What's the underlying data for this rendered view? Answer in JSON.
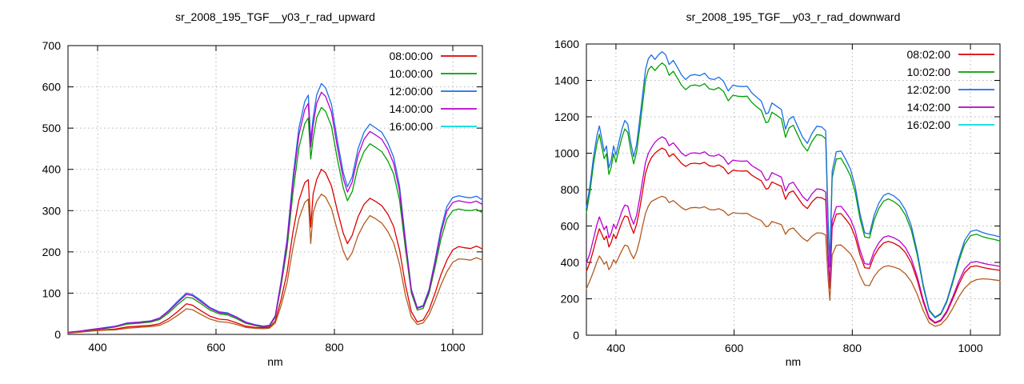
{
  "page": {
    "background": "#ffffff",
    "grid_color": "#b4b4b4",
    "axis_color": "#000000",
    "text_color": "#000000"
  },
  "charts": [
    {
      "title": "sr_2008_195_TGF__y03_r_rad_upward",
      "xlabel": "nm",
      "type": "line",
      "grid": true,
      "legend_position": "top-right",
      "xlim": [
        350,
        1050
      ],
      "ylim": [
        0,
        700
      ],
      "x_ticks": [
        400,
        600,
        800,
        1000
      ],
      "y_ticks": [
        0,
        100,
        200,
        300,
        400,
        500,
        600,
        700
      ],
      "x": [
        350,
        370,
        390,
        410,
        430,
        450,
        470,
        490,
        505,
        520,
        535,
        550,
        560,
        575,
        590,
        605,
        620,
        635,
        650,
        665,
        680,
        690,
        700,
        710,
        720,
        730,
        740,
        750,
        756,
        760,
        764,
        770,
        778,
        785,
        795,
        805,
        815,
        822,
        830,
        840,
        850,
        860,
        870,
        880,
        890,
        900,
        910,
        920,
        930,
        940,
        950,
        960,
        970,
        980,
        990,
        1000,
        1010,
        1020,
        1030,
        1040,
        1050
      ],
      "series": [
        {
          "name": "08:00:00",
          "legend_color": "#dc0000",
          "line_color": "#dc0000",
          "values": [
            4,
            6,
            9,
            11,
            13,
            18,
            20,
            22,
            26,
            38,
            55,
            74,
            71,
            57,
            44,
            37,
            35,
            28,
            20,
            17,
            16,
            17,
            32,
            85,
            150,
            248,
            325,
            368,
            375,
            260,
            340,
            375,
            400,
            392,
            360,
            300,
            245,
            220,
            240,
            285,
            315,
            330,
            322,
            312,
            292,
            262,
            205,
            120,
            55,
            30,
            35,
            60,
            100,
            145,
            180,
            205,
            213,
            210,
            208,
            214,
            207
          ]
        },
        {
          "name": "10:00:00",
          "legend_color": "#00a000",
          "line_color": "#00a000",
          "values": [
            5,
            7,
            11,
            14,
            18,
            25,
            27,
            30,
            36,
            52,
            72,
            90,
            88,
            74,
            59,
            50,
            47,
            38,
            27,
            22,
            18,
            20,
            41,
            118,
            208,
            344,
            452,
            511,
            525,
            425,
            475,
            525,
            550,
            541,
            505,
            425,
            355,
            324,
            346,
            407,
            443,
            462,
            453,
            443,
            421,
            389,
            326,
            208,
            100,
            59,
            63,
            100,
            163,
            231,
            280,
            300,
            304,
            301,
            300,
            303,
            295
          ]
        },
        {
          "name": "12:00:00",
          "legend_color": "#1c6ee8",
          "line_color": "#1c6ee8",
          "values": [
            5,
            8,
            12,
            16,
            20,
            28,
            30,
            33,
            40,
            58,
            80,
            100,
            97,
            82,
            65,
            55,
            52,
            42,
            30,
            24,
            20,
            22,
            45,
            130,
            230,
            380,
            500,
            565,
            580,
            470,
            525,
            580,
            608,
            598,
            558,
            470,
            392,
            358,
            382,
            450,
            490,
            510,
            500,
            490,
            465,
            430,
            360,
            230,
            110,
            65,
            70,
            110,
            180,
            255,
            310,
            332,
            336,
            333,
            331,
            335,
            326
          ]
        },
        {
          "name": "14:00:00",
          "legend_color": "#b800cc",
          "line_color": "#b800cc",
          "values": [
            5,
            8,
            12,
            15,
            19,
            27,
            29,
            32,
            39,
            56,
            77,
            97,
            94,
            79,
            63,
            53,
            50,
            41,
            29,
            23,
            19,
            21,
            43,
            125,
            222,
            367,
            483,
            545,
            560,
            454,
            507,
            560,
            587,
            577,
            539,
            454,
            378,
            345,
            369,
            434,
            473,
            492,
            483,
            473,
            449,
            415,
            347,
            222,
            106,
            63,
            68,
            106,
            174,
            246,
            299,
            320,
            324,
            321,
            319,
            323,
            315
          ]
        },
        {
          "name": "16:00:00",
          "legend_color": "#00dddd",
          "line_color": "#b45a1e",
          "values": [
            3,
            5,
            8,
            10,
            11,
            15,
            17,
            19,
            22,
            32,
            46,
            62,
            60,
            48,
            37,
            31,
            29,
            24,
            17,
            15,
            14,
            15,
            27,
            70,
            125,
            210,
            280,
            320,
            328,
            220,
            295,
            322,
            340,
            333,
            305,
            252,
            202,
            180,
            198,
            240,
            268,
            288,
            280,
            270,
            250,
            222,
            170,
            95,
            42,
            24,
            28,
            48,
            82,
            120,
            152,
            175,
            183,
            182,
            180,
            186,
            180
          ]
        }
      ]
    },
    {
      "title": "sr_2008_195_TGF__y03_r_rad_downward",
      "xlabel": "nm",
      "type": "line",
      "grid": true,
      "legend_position": "top-right",
      "xlim": [
        350,
        1050
      ],
      "ylim": [
        0,
        1600
      ],
      "x_ticks": [
        400,
        600,
        800,
        1000
      ],
      "y_ticks": [
        0,
        200,
        400,
        600,
        800,
        1000,
        1200,
        1400,
        1600
      ],
      "x": [
        350,
        356,
        362,
        368,
        372,
        376,
        380,
        384,
        388,
        392,
        396,
        400,
        405,
        410,
        415,
        420,
        425,
        430,
        435,
        440,
        445,
        450,
        455,
        460,
        466,
        472,
        478,
        484,
        490,
        497,
        504,
        511,
        518,
        526,
        534,
        542,
        550,
        558,
        566,
        574,
        582,
        590,
        598,
        606,
        614,
        622,
        630,
        638,
        646,
        654,
        658,
        664,
        672,
        680,
        687,
        693,
        700,
        708,
        716,
        724,
        732,
        740,
        748,
        755,
        759,
        762,
        766,
        773,
        781,
        789,
        797,
        805,
        813,
        821,
        829,
        837,
        845,
        853,
        861,
        870,
        880,
        890,
        900,
        910,
        920,
        930,
        940,
        950,
        960,
        970,
        980,
        990,
        1000,
        1010,
        1020,
        1030,
        1040,
        1050
      ],
      "series": [
        {
          "name": "08:02:00",
          "legend_color": "#dc0000",
          "line_color": "#dc0000",
          "values": [
            350,
            400,
            470,
            545,
            585,
            555,
            525,
            545,
            485,
            510,
            555,
            530,
            575,
            620,
            655,
            650,
            600,
            560,
            610,
            690,
            790,
            890,
            940,
            975,
            1000,
            1016,
            1028,
            1018,
            981,
            997,
            971,
            944,
            927,
            943,
            945,
            941,
            950,
            931,
            927,
            936,
            921,
            886,
            907,
            903,
            902,
            903,
            879,
            863,
            849,
            803,
            806,
            842,
            830,
            818,
            747,
            783,
            793,
            755,
            718,
            696,
            733,
            758,
            755,
            742,
            422,
            257,
            594,
            665,
            668,
            638,
            602,
            540,
            441,
            371,
            367,
            436,
            479,
            507,
            515,
            506,
            488,
            454,
            396,
            302,
            183,
            92,
            66,
            79,
            125,
            198,
            277,
            343,
            376,
            381,
            373,
            366,
            361,
            356
          ]
        },
        {
          "name": "10:02:00",
          "legend_color": "#00a000",
          "line_color": "#00a000",
          "values": [
            672,
            787,
            941,
            1056,
            1104,
            1037,
            970,
            998,
            883,
            922,
            998,
            950,
            1018,
            1085,
            1133,
            1114,
            1018,
            941,
            1008,
            1133,
            1267,
            1402,
            1459,
            1478,
            1454,
            1478,
            1496,
            1480,
            1428,
            1450,
            1413,
            1373,
            1349,
            1371,
            1375,
            1369,
            1382,
            1354,
            1349,
            1361,
            1340,
            1288,
            1319,
            1313,
            1311,
            1313,
            1279,
            1256,
            1235,
            1167,
            1173,
            1225,
            1208,
            1190,
            1087,
            1139,
            1154,
            1098,
            1044,
            1012,
            1066,
            1102,
            1098,
            1079,
            614,
            374,
            864,
            968,
            972,
            927,
            876,
            785,
            641,
            540,
            534,
            634,
            697,
            737,
            749,
            735,
            710,
            660,
            576,
            440,
            267,
            134,
            96,
            115,
            182,
            288,
            403,
            499,
            547,
            555,
            542,
            533,
            526,
            518
          ]
        },
        {
          "name": "12:02:00",
          "legend_color": "#1c6ee8",
          "line_color": "#1c6ee8",
          "values": [
            700,
            820,
            980,
            1100,
            1150,
            1080,
            1010,
            1040,
            920,
            960,
            1040,
            990,
            1060,
            1130,
            1180,
            1160,
            1060,
            980,
            1050,
            1180,
            1320,
            1460,
            1520,
            1540,
            1515,
            1540,
            1558,
            1542,
            1487,
            1510,
            1472,
            1430,
            1405,
            1428,
            1432,
            1426,
            1440,
            1410,
            1405,
            1418,
            1396,
            1342,
            1374,
            1368,
            1366,
            1368,
            1332,
            1308,
            1286,
            1216,
            1222,
            1276,
            1258,
            1240,
            1132,
            1186,
            1202,
            1144,
            1088,
            1054,
            1110,
            1148,
            1144,
            1124,
            640,
            390,
            900,
            1008,
            1012,
            966,
            912,
            818,
            668,
            562,
            556,
            660,
            726,
            768,
            780,
            766,
            740,
            688,
            600,
            458,
            278,
            140,
            100,
            120,
            190,
            300,
            420,
            520,
            570,
            578,
            565,
            555,
            548,
            540
          ]
        },
        {
          "name": "14:02:00",
          "legend_color": "#b800cc",
          "line_color": "#b800cc",
          "values": [
            395,
            450,
            530,
            610,
            650,
            615,
            580,
            600,
            535,
            560,
            610,
            585,
            630,
            680,
            715,
            710,
            650,
            610,
            660,
            750,
            850,
            950,
            1000,
            1030,
            1060,
            1078,
            1090,
            1079,
            1041,
            1057,
            1030,
            1001,
            984,
            1000,
            1002,
            998,
            1008,
            987,
            984,
            993,
            977,
            939,
            962,
            958,
            956,
            958,
            932,
            916,
            900,
            851,
            855,
            893,
            881,
            868,
            792,
            830,
            841,
            801,
            762,
            738,
            777,
            804,
            801,
            787,
            448,
            273,
            630,
            706,
            708,
            676,
            638,
            573,
            468,
            393,
            389,
            462,
            508,
            538,
            546,
            536,
            518,
            482,
            420,
            321,
            195,
            98,
            70,
            84,
            133,
            210,
            294,
            364,
            399,
            405,
            396,
            389,
            384,
            378
          ]
        },
        {
          "name": "16:02:00",
          "legend_color": "#00dddd",
          "line_color": "#b45a1e",
          "values": [
            255,
            300,
            350,
            405,
            435,
            415,
            390,
            405,
            360,
            380,
            415,
            395,
            430,
            465,
            495,
            490,
            450,
            420,
            460,
            520,
            600,
            670,
            710,
            735,
            745,
            755,
            763,
            756,
            729,
            740,
            721,
            701,
            688,
            700,
            702,
            699,
            706,
            691,
            688,
            695,
            684,
            658,
            673,
            670,
            669,
            670,
            653,
            641,
            630,
            596,
            599,
            625,
            616,
            608,
            555,
            581,
            589,
            561,
            533,
            516,
            544,
            562,
            561,
            551,
            314,
            191,
            441,
            494,
            496,
            473,
            447,
            401,
            328,
            275,
            272,
            323,
            356,
            376,
            382,
            375,
            363,
            337,
            294,
            224,
            136,
            69,
            49,
            59,
            93,
            147,
            210,
            258,
            290,
            305,
            310,
            308,
            304,
            300
          ]
        }
      ]
    }
  ]
}
